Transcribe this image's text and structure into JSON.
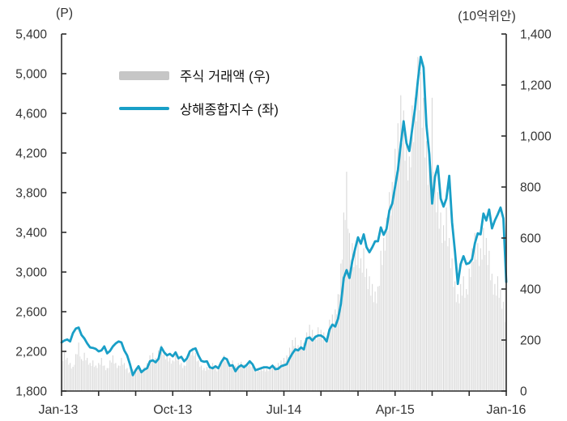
{
  "chart": {
    "left_axis": {
      "unit": "(P)",
      "ticks": [
        1800,
        2000,
        2200,
        2400,
        2600,
        2800,
        3000,
        3200,
        3400,
        3600,
        3800,
        4000,
        4200,
        4400,
        4600,
        4800,
        5000,
        5200,
        5400
      ],
      "labeled_ticks": [
        1800,
        2200,
        2600,
        3000,
        3400,
        3800,
        4200,
        4600,
        5000,
        5400
      ],
      "min": 1800,
      "max": 5400
    },
    "right_axis": {
      "unit": "(10억위안)",
      "labeled_ticks": [
        0,
        200,
        400,
        600,
        800,
        1000,
        1200,
        1400
      ],
      "min": 0,
      "max": 1400
    },
    "x_axis": {
      "labels": [
        "Jan-13",
        "Oct-13",
        "Jul-14",
        "Apr-15",
        "Jan-16"
      ],
      "label_month_index": [
        0,
        9,
        18,
        27,
        36
      ],
      "minor_tick_every_months": 3,
      "total_months": 36
    },
    "legend": {
      "volume": {
        "label": "주식 거래액 (우)",
        "type": "bar",
        "color": "#c6c6c6"
      },
      "index": {
        "label": "상해종합지수 (좌)",
        "type": "line",
        "color": "#199fc7"
      }
    },
    "colors": {
      "bar": "#d9d9d9",
      "bar_soft": "#e3e3e3",
      "line": "#199fc7",
      "axis": "#2b2b2b",
      "text": "#353535"
    }
  },
  "chart_data": {
    "type": "combo bar+line, dual axis",
    "x_start": "Jan-2013",
    "x_end": "Jan-2016",
    "frequency": "weekly",
    "left_axis_range": [
      1800,
      5400
    ],
    "right_axis_range": [
      0,
      1400
    ],
    "grid": "off",
    "legend_position": "upper-left inside plot",
    "series": [
      {
        "name": "주식 거래액 (우)",
        "type": "bar",
        "axis": "right",
        "unit": "10억위안",
        "values": [
          120,
          155,
          130,
          110,
          95,
          145,
          190,
          125,
          150,
          130,
          110,
          120,
          100,
          110,
          130,
          100,
          90,
          120,
          140,
          110,
          100,
          130,
          110,
          90,
          75,
          85,
          90,
          100,
          80,
          95,
          110,
          140,
          150,
          130,
          160,
          180,
          150,
          140,
          130,
          120,
          150,
          130,
          110,
          100,
          130,
          160,
          170,
          150,
          120,
          100,
          90,
          95,
          100,
          110,
          95,
          85,
          120,
          140,
          130,
          110,
          120,
          100,
          110,
          115,
          105,
          110,
          120,
          100,
          90,
          85,
          95,
          90,
          88,
          95,
          105,
          100,
          110,
          120,
          130,
          140,
          170,
          200,
          210,
          180,
          200,
          190,
          230,
          260,
          240,
          220,
          250,
          240,
          230,
          210,
          280,
          300,
          320,
          380,
          500,
          700,
          860,
          620,
          580,
          550,
          600,
          520,
          560,
          480,
          450,
          420,
          390,
          410,
          550,
          600,
          680,
          780,
          820,
          950,
          1050,
          1160,
          1100,
          1000,
          920,
          1120,
          1150,
          1310,
          1250,
          1150,
          980,
          900,
          1150,
          850,
          780,
          700,
          650,
          720,
          600,
          520,
          430,
          380,
          420,
          450,
          400,
          480,
          560,
          620,
          580,
          560,
          640,
          600,
          550,
          460,
          420,
          450,
          400,
          350,
          280
        ]
      },
      {
        "name": "상해종합지수 (좌)",
        "type": "line",
        "axis": "left",
        "unit": "P",
        "values": [
          2290,
          2310,
          2320,
          2300,
          2385,
          2430,
          2440,
          2365,
          2330,
          2280,
          2240,
          2235,
          2225,
          2200,
          2210,
          2250,
          2180,
          2205,
          2250,
          2280,
          2300,
          2290,
          2210,
          2160,
          2070,
          1960,
          2010,
          2050,
          1990,
          2015,
          2030,
          2100,
          2110,
          2090,
          2125,
          2240,
          2190,
          2160,
          2175,
          2150,
          2190,
          2130,
          2145,
          2100,
          2130,
          2200,
          2220,
          2230,
          2160,
          2105,
          2095,
          2100,
          2040,
          2030,
          2050,
          2030,
          2090,
          2135,
          2120,
          2055,
          2060,
          2000,
          2040,
          2060,
          2040,
          2065,
          2100,
          2070,
          2010,
          2020,
          2030,
          2040,
          2040,
          2030,
          2055,
          2020,
          2025,
          2050,
          2060,
          2070,
          2130,
          2180,
          2220,
          2210,
          2240,
          2220,
          2330,
          2340,
          2310,
          2345,
          2360,
          2360,
          2340,
          2300,
          2420,
          2470,
          2450,
          2530,
          2680,
          2940,
          3020,
          2940,
          3110,
          3235,
          3350,
          3285,
          3380,
          3250,
          3200,
          3250,
          3310,
          3310,
          3450,
          3375,
          3435,
          3620,
          3690,
          3860,
          4030,
          4290,
          4520,
          4300,
          4220,
          4440,
          4650,
          4930,
          5170,
          5060,
          4480,
          4190,
          3690,
          3960,
          4070,
          3740,
          3660,
          3740,
          3970,
          3500,
          3210,
          2880,
          3080,
          3160,
          3080,
          3090,
          3130,
          3290,
          3390,
          3380,
          3590,
          3520,
          3630,
          3440,
          3520,
          3580,
          3650,
          3540,
          2900
        ]
      }
    ]
  }
}
